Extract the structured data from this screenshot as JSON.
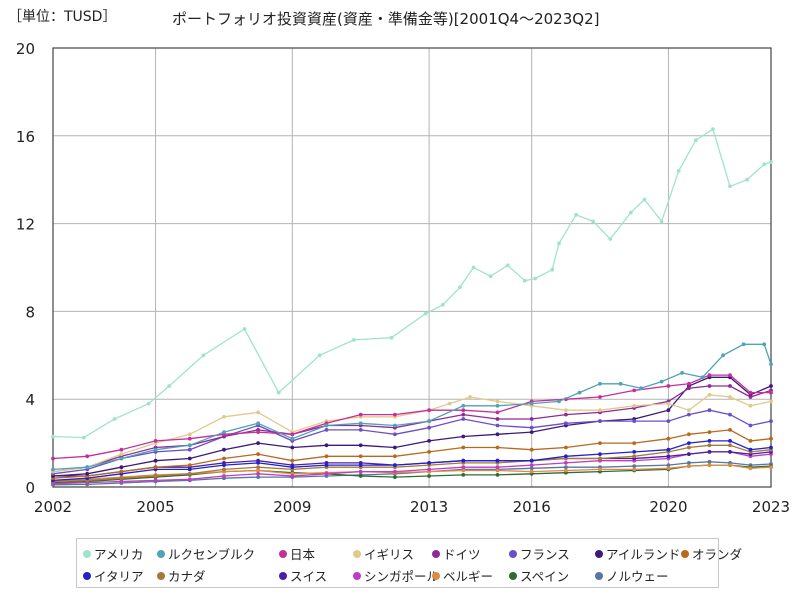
{
  "unit_label": "［単位：TUSD］",
  "chart_data": {
    "type": "line",
    "title": "ポートフォリオ投資資産(資産・準備金等)[2001Q4～2023Q2]",
    "xlabel": "",
    "ylabel": "",
    "x_ticks": [
      "2002",
      "2005",
      "2009",
      "2013",
      "2016",
      "2020",
      "2023"
    ],
    "y_ticks": [
      "0",
      "4",
      "8",
      "12",
      "16",
      "20"
    ],
    "xlim": [
      2002.0,
      2023.0
    ],
    "ylim": [
      0,
      20
    ],
    "grid": true,
    "legend_position": "bottom",
    "series": [
      {
        "name": "アメリカ",
        "color": "#9fe3cf",
        "x": [
          2002.0,
          2002.9,
          2003.8,
          2004.8,
          2005.4,
          2006.4,
          2007.6,
          2008.6,
          2009.8,
          2010.8,
          2011.9,
          2012.9,
          2013.4,
          2013.9,
          2014.3,
          2014.8,
          2015.3,
          2015.8,
          2016.1,
          2016.6,
          2016.8,
          2017.3,
          2017.8,
          2018.3,
          2018.9,
          2019.3,
          2019.8,
          2020.3,
          2020.8,
          2021.3,
          2021.8,
          2022.3,
          2022.8,
          2023.0
        ],
        "values": [
          2.3,
          2.25,
          3.1,
          3.8,
          4.6,
          6.0,
          7.2,
          4.3,
          6.0,
          6.7,
          6.8,
          7.9,
          8.3,
          9.1,
          10.0,
          9.6,
          10.1,
          9.4,
          9.5,
          9.9,
          11.1,
          12.4,
          12.1,
          11.3,
          12.5,
          13.1,
          12.1,
          14.4,
          15.8,
          16.3,
          13.7,
          14.0,
          14.7,
          14.8
        ]
      },
      {
        "name": "ルクセンブルク",
        "color": "#4fa3b5",
        "x": [
          2002.0,
          2003.0,
          2004.0,
          2005.0,
          2006.0,
          2007.0,
          2008.0,
          2009.0,
          2010.0,
          2011.0,
          2012.0,
          2013.0,
          2014.0,
          2015.0,
          2016.0,
          2016.8,
          2017.4,
          2018.0,
          2018.6,
          2019.2,
          2019.8,
          2020.4,
          2021.0,
          2021.6,
          2022.2,
          2022.8,
          2023.0
        ],
        "values": [
          0.8,
          0.9,
          1.3,
          1.7,
          1.9,
          2.5,
          2.9,
          2.2,
          2.8,
          2.9,
          2.8,
          3.0,
          3.7,
          3.7,
          3.8,
          3.9,
          4.3,
          4.7,
          4.7,
          4.5,
          4.8,
          5.2,
          5.0,
          6.0,
          6.5,
          6.5,
          5.6
        ]
      },
      {
        "name": "日本",
        "color": "#c42f9a",
        "x": [
          2002.0,
          2003.0,
          2004.0,
          2005.0,
          2006.0,
          2007.0,
          2008.0,
          2009.0,
          2010.0,
          2011.0,
          2012.0,
          2013.0,
          2014.0,
          2015.0,
          2016.0,
          2017.0,
          2018.0,
          2019.0,
          2020.0,
          2020.6,
          2021.2,
          2021.8,
          2022.4,
          2023.0
        ],
        "values": [
          1.3,
          1.4,
          1.7,
          2.1,
          2.2,
          2.4,
          2.5,
          2.4,
          2.9,
          3.3,
          3.3,
          3.5,
          3.5,
          3.4,
          3.9,
          4.0,
          4.1,
          4.4,
          4.6,
          4.7,
          5.1,
          5.1,
          4.3,
          4.3
        ]
      },
      {
        "name": "イギリス",
        "color": "#e2c98b",
        "x": [
          2002.0,
          2003.0,
          2004.0,
          2005.0,
          2006.0,
          2007.0,
          2008.0,
          2009.0,
          2010.0,
          2011.0,
          2012.0,
          2013.0,
          2013.6,
          2014.2,
          2015.0,
          2016.0,
          2017.0,
          2018.0,
          2019.0,
          2020.0,
          2020.6,
          2021.2,
          2021.8,
          2022.4,
          2023.0
        ],
        "values": [
          0.7,
          0.9,
          1.5,
          2.0,
          2.4,
          3.2,
          3.4,
          2.5,
          3.0,
          3.2,
          3.2,
          3.5,
          3.8,
          4.1,
          3.9,
          3.7,
          3.5,
          3.5,
          3.7,
          3.8,
          3.5,
          4.2,
          4.1,
          3.7,
          3.9
        ]
      },
      {
        "name": "ドイツ",
        "color": "#8f2a97",
        "x": [
          2002.0,
          2003.0,
          2004.0,
          2005.0,
          2006.0,
          2007.0,
          2008.0,
          2009.0,
          2010.0,
          2011.0,
          2012.0,
          2013.0,
          2014.0,
          2015.0,
          2016.0,
          2017.0,
          2018.0,
          2019.0,
          2020.0,
          2020.6,
          2021.2,
          2021.8,
          2022.4,
          2023.0
        ],
        "values": [
          0.7,
          0.9,
          1.4,
          1.8,
          1.9,
          2.3,
          2.6,
          2.4,
          2.8,
          2.8,
          2.7,
          3.0,
          3.3,
          3.1,
          3.1,
          3.3,
          3.4,
          3.6,
          3.9,
          4.5,
          4.6,
          4.6,
          4.1,
          4.4
        ]
      },
      {
        "name": "フランス",
        "color": "#6a4fc8",
        "x": [
          2002.0,
          2003.0,
          2004.0,
          2005.0,
          2006.0,
          2007.0,
          2008.0,
          2009.0,
          2010.0,
          2011.0,
          2012.0,
          2013.0,
          2014.0,
          2015.0,
          2016.0,
          2017.0,
          2018.0,
          2019.0,
          2020.0,
          2020.6,
          2021.2,
          2021.8,
          2022.4,
          2023.0
        ],
        "values": [
          0.6,
          0.8,
          1.3,
          1.6,
          1.7,
          2.3,
          2.8,
          2.1,
          2.6,
          2.6,
          2.4,
          2.7,
          3.1,
          2.8,
          2.7,
          2.9,
          3.0,
          3.0,
          3.0,
          3.3,
          3.5,
          3.3,
          2.8,
          3.0
        ]
      },
      {
        "name": "アイルランド",
        "color": "#3d1a7a",
        "x": [
          2002.0,
          2003.0,
          2004.0,
          2005.0,
          2006.0,
          2007.0,
          2008.0,
          2009.0,
          2010.0,
          2011.0,
          2012.0,
          2013.0,
          2014.0,
          2015.0,
          2016.0,
          2017.0,
          2018.0,
          2019.0,
          2020.0,
          2020.6,
          2021.2,
          2021.8,
          2022.4,
          2023.0
        ],
        "values": [
          0.5,
          0.6,
          0.9,
          1.2,
          1.3,
          1.7,
          2.0,
          1.8,
          1.9,
          1.9,
          1.8,
          2.1,
          2.3,
          2.4,
          2.5,
          2.8,
          3.0,
          3.1,
          3.5,
          4.6,
          5.0,
          5.0,
          4.2,
          4.6
        ]
      },
      {
        "name": "オランダ",
        "color": "#b8691c",
        "x": [
          2002.0,
          2003.0,
          2004.0,
          2005.0,
          2006.0,
          2007.0,
          2008.0,
          2009.0,
          2010.0,
          2011.0,
          2012.0,
          2013.0,
          2014.0,
          2015.0,
          2016.0,
          2017.0,
          2018.0,
          2019.0,
          2020.0,
          2020.6,
          2021.2,
          2021.8,
          2022.4,
          2023.0
        ],
        "values": [
          0.4,
          0.5,
          0.7,
          0.9,
          1.0,
          1.3,
          1.5,
          1.2,
          1.4,
          1.4,
          1.4,
          1.6,
          1.8,
          1.8,
          1.7,
          1.8,
          2.0,
          2.0,
          2.2,
          2.4,
          2.5,
          2.6,
          2.1,
          2.2
        ]
      },
      {
        "name": "イタリア",
        "color": "#2222cc",
        "x": [
          2002.0,
          2003.0,
          2004.0,
          2005.0,
          2006.0,
          2007.0,
          2008.0,
          2009.0,
          2010.0,
          2011.0,
          2012.0,
          2013.0,
          2014.0,
          2015.0,
          2016.0,
          2017.0,
          2018.0,
          2019.0,
          2020.0,
          2020.6,
          2021.2,
          2021.8,
          2022.4,
          2023.0
        ],
        "values": [
          0.3,
          0.4,
          0.6,
          0.8,
          0.8,
          1.0,
          1.1,
          0.9,
          1.0,
          1.0,
          1.0,
          1.1,
          1.2,
          1.2,
          1.2,
          1.4,
          1.5,
          1.6,
          1.7,
          2.0,
          2.1,
          2.1,
          1.7,
          1.8
        ]
      },
      {
        "name": "カナダ",
        "color": "#a67a3a",
        "x": [
          2002.0,
          2003.0,
          2004.0,
          2005.0,
          2006.0,
          2007.0,
          2008.0,
          2009.0,
          2010.0,
          2011.0,
          2012.0,
          2013.0,
          2014.0,
          2015.0,
          2016.0,
          2017.0,
          2018.0,
          2019.0,
          2020.0,
          2020.6,
          2021.2,
          2021.8,
          2022.4,
          2023.0
        ],
        "values": [
          0.25,
          0.3,
          0.4,
          0.5,
          0.6,
          0.8,
          0.9,
          0.8,
          0.9,
          0.9,
          0.9,
          1.0,
          1.1,
          1.1,
          1.2,
          1.3,
          1.3,
          1.4,
          1.6,
          1.8,
          1.9,
          1.9,
          1.6,
          1.7
        ]
      },
      {
        "name": "スイス",
        "color": "#4a1fa6",
        "x": [
          2002.0,
          2003.0,
          2004.0,
          2005.0,
          2006.0,
          2007.0,
          2008.0,
          2009.0,
          2010.0,
          2011.0,
          2012.0,
          2013.0,
          2014.0,
          2015.0,
          2016.0,
          2017.0,
          2018.0,
          2019.0,
          2020.0,
          2020.6,
          2021.2,
          2021.8,
          2022.4,
          2023.0
        ],
        "values": [
          0.5,
          0.5,
          0.7,
          0.9,
          0.9,
          1.1,
          1.2,
          1.0,
          1.1,
          1.1,
          1.0,
          1.1,
          1.2,
          1.2,
          1.2,
          1.3,
          1.3,
          1.3,
          1.4,
          1.5,
          1.6,
          1.6,
          1.5,
          1.6
        ]
      },
      {
        "name": "シンガポール",
        "color": "#c03cc0",
        "x": [
          2002.0,
          2003.0,
          2004.0,
          2005.0,
          2006.0,
          2007.0,
          2008.0,
          2009.0,
          2010.0,
          2011.0,
          2012.0,
          2013.0,
          2014.0,
          2015.0,
          2016.0,
          2017.0,
          2018.0,
          2019.0,
          2020.0,
          2020.6,
          2021.2,
          2021.8,
          2022.4,
          2023.0
        ],
        "values": [
          0.15,
          0.2,
          0.25,
          0.3,
          0.35,
          0.5,
          0.6,
          0.5,
          0.6,
          0.7,
          0.7,
          0.8,
          0.9,
          0.9,
          1.0,
          1.1,
          1.2,
          1.2,
          1.3,
          1.5,
          1.6,
          1.6,
          1.4,
          1.5
        ]
      },
      {
        "name": "ベルギー",
        "color": "#e08a40",
        "x": [
          2002.0,
          2003.0,
          2004.0,
          2005.0,
          2006.0,
          2007.0,
          2008.0,
          2009.0,
          2010.0,
          2011.0,
          2012.0,
          2013.0,
          2014.0,
          2015.0,
          2016.0,
          2017.0,
          2018.0,
          2019.0,
          2020.0,
          2020.6,
          2021.2,
          2021.8,
          2022.4,
          2023.0
        ],
        "values": [
          0.3,
          0.35,
          0.45,
          0.55,
          0.6,
          0.7,
          0.75,
          0.6,
          0.65,
          0.7,
          0.65,
          0.7,
          0.75,
          0.75,
          0.7,
          0.75,
          0.8,
          0.8,
          0.85,
          0.95,
          1.0,
          1.0,
          0.85,
          0.9
        ]
      },
      {
        "name": "スペイン",
        "color": "#2e6b35",
        "x": [
          2002.0,
          2003.0,
          2004.0,
          2005.0,
          2006.0,
          2007.0,
          2008.0,
          2009.0,
          2010.0,
          2011.0,
          2012.0,
          2013.0,
          2014.0,
          2015.0,
          2016.0,
          2017.0,
          2018.0,
          2019.0,
          2020.0,
          2020.6,
          2021.2,
          2021.8,
          2022.4,
          2023.0
        ],
        "values": [
          0.2,
          0.25,
          0.35,
          0.45,
          0.55,
          0.7,
          0.75,
          0.65,
          0.6,
          0.5,
          0.45,
          0.5,
          0.55,
          0.55,
          0.6,
          0.65,
          0.7,
          0.75,
          0.8,
          0.95,
          1.0,
          1.0,
          0.9,
          0.95
        ]
      },
      {
        "name": "ノルウェー",
        "color": "#5577a0",
        "x": [
          2002.0,
          2003.0,
          2004.0,
          2005.0,
          2006.0,
          2007.0,
          2008.0,
          2009.0,
          2010.0,
          2011.0,
          2012.0,
          2013.0,
          2014.0,
          2015.0,
          2016.0,
          2017.0,
          2018.0,
          2019.0,
          2020.0,
          2020.6,
          2021.2,
          2021.8,
          2022.4,
          2023.0
        ],
        "values": [
          0.1,
          0.12,
          0.18,
          0.25,
          0.3,
          0.4,
          0.45,
          0.45,
          0.5,
          0.55,
          0.6,
          0.7,
          0.8,
          0.8,
          0.85,
          0.9,
          0.9,
          0.95,
          1.0,
          1.1,
          1.15,
          1.1,
          1.0,
          1.05
        ]
      }
    ]
  }
}
